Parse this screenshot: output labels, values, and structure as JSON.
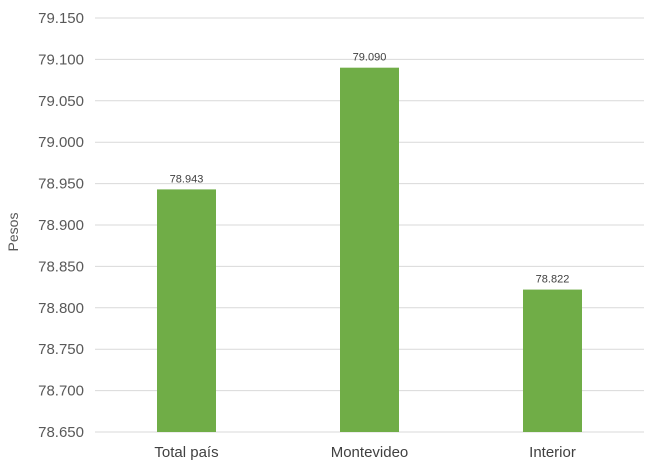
{
  "chart_data": {
    "type": "bar",
    "categories": [
      "Total país",
      "Montevideo",
      "Interior"
    ],
    "values": [
      78943,
      79090,
      78822
    ],
    "data_labels": [
      "78.943",
      "79.090",
      "78.822"
    ],
    "ylabel": "Pesos",
    "ylim": [
      78650,
      79150
    ],
    "y_ticks": [
      78650,
      78700,
      78750,
      78800,
      78850,
      78900,
      78950,
      79000,
      79050,
      79100,
      79150
    ],
    "y_tick_labels": [
      "78.650",
      "78.700",
      "78.750",
      "78.800",
      "78.850",
      "78.900",
      "78.950",
      "79.000",
      "79.050",
      "79.100",
      "79.150"
    ],
    "grid": true,
    "legend": "none",
    "bar_color": "#70AD47",
    "grid_color": "#D9D9D9"
  }
}
